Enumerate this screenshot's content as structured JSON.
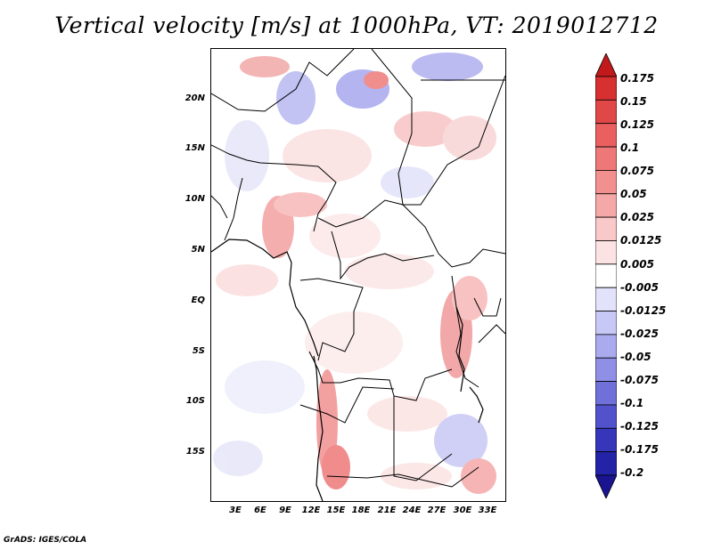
{
  "title": "Vertical velocity [m/s] at 1000hPa, VT: 2019012712",
  "credit": "GrADS: IGES/COLA",
  "map": {
    "lat_labels": [
      "20N",
      "15N",
      "10N",
      "5N",
      "EQ",
      "5S",
      "10S",
      "15S"
    ],
    "lon_labels": [
      "3E",
      "6E",
      "9E",
      "12E",
      "15E",
      "18E",
      "21E",
      "24E",
      "27E",
      "30E",
      "33E"
    ]
  },
  "colorbar": {
    "labels": [
      "0.175",
      "0.15",
      "0.125",
      "0.1",
      "0.075",
      "0.05",
      "0.025",
      "0.0125",
      "0.005",
      "-0.005",
      "-0.0125",
      "-0.025",
      "-0.05",
      "-0.075",
      "-0.1",
      "-0.125",
      "-0.175",
      "-0.2"
    ],
    "colors": [
      "#c21a1a",
      "#d63030",
      "#e04848",
      "#ea6060",
      "#ee7878",
      "#f29090",
      "#f5a8a8",
      "#f9c8c8",
      "#fce3e3",
      "#ffffff",
      "#e2e2fa",
      "#c8c8f6",
      "#aaaaee",
      "#8f8fe6",
      "#7070da",
      "#5252cc",
      "#3636bb",
      "#2323a8",
      "#1a1490"
    ]
  }
}
